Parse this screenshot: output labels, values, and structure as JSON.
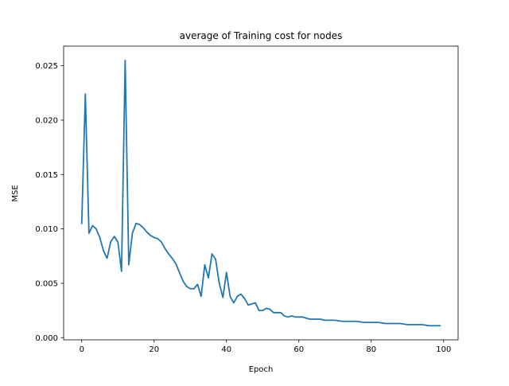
{
  "chart_data": {
    "type": "line",
    "title": "average of Training cost for nodes",
    "xlabel": "Epoch",
    "ylabel": "MSE",
    "xlim": [
      -5,
      104
    ],
    "ylim": [
      -0.0002,
      0.0268
    ],
    "xticks": [
      0,
      20,
      40,
      60,
      80,
      100
    ],
    "xtick_labels": [
      "0",
      "20",
      "40",
      "60",
      "80",
      "100"
    ],
    "yticks": [
      0.0,
      0.005,
      0.01,
      0.015,
      0.02,
      0.025
    ],
    "ytick_labels": [
      "0.000",
      "0.005",
      "0.010",
      "0.015",
      "0.020",
      "0.025"
    ],
    "grid": false,
    "colors": {
      "line": "#1f77b4"
    },
    "series": [
      {
        "x": [
          0,
          1,
          2,
          3,
          4,
          5,
          6,
          7,
          8,
          9,
          10,
          11,
          12,
          13,
          14,
          15,
          16,
          17,
          18,
          19,
          20,
          21,
          22,
          23,
          24,
          25,
          26,
          27,
          28,
          29,
          30,
          31,
          32,
          33,
          34,
          35,
          36,
          37,
          38,
          39,
          40,
          41,
          42,
          43,
          44,
          45,
          46,
          47,
          48,
          49,
          50,
          51,
          52,
          53,
          54,
          55,
          56,
          57,
          58,
          59,
          60,
          61,
          62,
          63,
          64,
          65,
          66,
          67,
          68,
          69,
          70,
          72,
          74,
          76,
          78,
          80,
          82,
          84,
          86,
          88,
          90,
          92,
          94,
          96,
          98,
          99
        ],
        "y": [
          0.0105,
          0.0224,
          0.0096,
          0.0103,
          0.01,
          0.0092,
          0.008,
          0.0073,
          0.0088,
          0.0093,
          0.0088,
          0.0061,
          0.0255,
          0.0067,
          0.0096,
          0.0105,
          0.0104,
          0.0101,
          0.0097,
          0.0094,
          0.0092,
          0.0091,
          0.0088,
          0.0082,
          0.0077,
          0.0073,
          0.0068,
          0.006,
          0.0052,
          0.0047,
          0.0045,
          0.0045,
          0.0049,
          0.0038,
          0.0067,
          0.0055,
          0.0077,
          0.0072,
          0.005,
          0.0037,
          0.006,
          0.0038,
          0.0032,
          0.0038,
          0.004,
          0.0036,
          0.003,
          0.0031,
          0.0032,
          0.0025,
          0.0025,
          0.0027,
          0.0026,
          0.0023,
          0.0023,
          0.0023,
          0.002,
          0.0019,
          0.002,
          0.0019,
          0.0019,
          0.0019,
          0.0018,
          0.0017,
          0.0017,
          0.0017,
          0.0017,
          0.0016,
          0.0016,
          0.0016,
          0.0016,
          0.0015,
          0.0015,
          0.0015,
          0.0014,
          0.0014,
          0.0014,
          0.0013,
          0.0013,
          0.0013,
          0.0012,
          0.0012,
          0.0012,
          0.0011,
          0.0011,
          0.0011
        ]
      }
    ]
  }
}
